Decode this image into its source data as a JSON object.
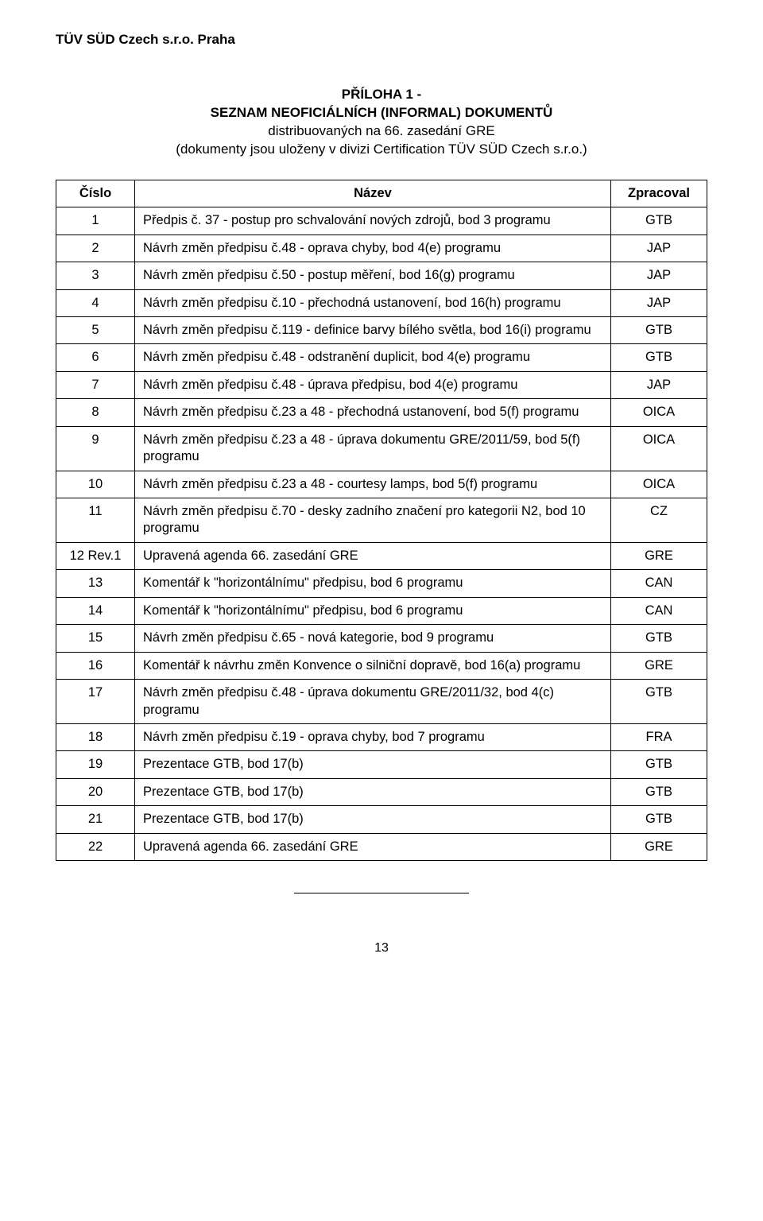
{
  "org_title": "TÜV SÜD Czech s.r.o. Praha",
  "doc_title_line1": "PŘÍLOHA 1 -",
  "doc_title_line2": "SEZNAM NEOFICIÁLNÍCH (INFORMAL) DOKUMENTŮ",
  "doc_subtitle_line1": "distribuovaných na 66. zasedání GRE",
  "doc_subtitle_line2": "(dokumenty jsou uloženy v divizi Certification TÜV SÜD Czech s.r.o.)",
  "headers": {
    "num": "Číslo",
    "name": "Název",
    "proc": "Zpracoval"
  },
  "rows": [
    {
      "num": "1",
      "name": "Předpis č. 37 - postup pro schvalování nových zdrojů, bod 3 programu",
      "proc": "GTB"
    },
    {
      "num": "2",
      "name": "Návrh změn předpisu č.48 - oprava chyby, bod 4(e) programu",
      "proc": "JAP"
    },
    {
      "num": "3",
      "name": "Návrh změn předpisu č.50 - postup měření, bod 16(g) programu",
      "proc": "JAP"
    },
    {
      "num": "4",
      "name": "Návrh změn předpisu č.10 - přechodná ustanovení, bod 16(h) programu",
      "proc": "JAP"
    },
    {
      "num": "5",
      "name": "Návrh změn předpisu č.119 - definice barvy bílého světla, bod 16(i) programu",
      "proc": "GTB"
    },
    {
      "num": "6",
      "name": "Návrh změn předpisu č.48 - odstranění duplicit, bod 4(e) programu",
      "proc": "GTB"
    },
    {
      "num": "7",
      "name": "Návrh změn předpisu č.48 - úprava předpisu, bod 4(e) programu",
      "proc": "JAP"
    },
    {
      "num": "8",
      "name": "Návrh změn předpisu č.23 a 48 - přechodná ustanovení, bod 5(f) programu",
      "proc": "OICA"
    },
    {
      "num": "9",
      "name": "Návrh změn předpisu č.23 a 48 - úprava dokumentu GRE/2011/59, bod 5(f) programu",
      "proc": "OICA"
    },
    {
      "num": "10",
      "name": "Návrh změn předpisu č.23 a 48 - courtesy lamps, bod 5(f) programu",
      "proc": "OICA"
    },
    {
      "num": "11",
      "name": "Návrh změn předpisu č.70 - desky zadního značení pro kategorii N2, bod 10 programu",
      "proc": "CZ"
    },
    {
      "num": "12 Rev.1",
      "name": "Upravená agenda 66. zasedání GRE",
      "proc": "GRE"
    },
    {
      "num": "13",
      "name": "Komentář k \"horizontálnímu\" předpisu, bod 6 programu",
      "proc": "CAN"
    },
    {
      "num": "14",
      "name": "Komentář k \"horizontálnímu\" předpisu, bod 6 programu",
      "proc": "CAN"
    },
    {
      "num": "15",
      "name": "Návrh změn předpisu č.65 - nová kategorie, bod 9 programu",
      "proc": "GTB"
    },
    {
      "num": "16",
      "name": "Komentář k návrhu změn Konvence o silniční dopravě, bod 16(a) programu",
      "proc": "GRE"
    },
    {
      "num": "17",
      "name": "Návrh změn předpisu č.48 - úprava dokumentu GRE/2011/32, bod 4(c) programu",
      "proc": "GTB"
    },
    {
      "num": "18",
      "name": "Návrh změn předpisu č.19 - oprava chyby, bod 7 programu",
      "proc": "FRA"
    },
    {
      "num": "19",
      "name": "Prezentace GTB, bod 17(b)",
      "proc": "GTB"
    },
    {
      "num": "20",
      "name": "Prezentace GTB, bod 17(b)",
      "proc": "GTB"
    },
    {
      "num": "21",
      "name": "Prezentace GTB, bod 17(b)",
      "proc": "GTB"
    },
    {
      "num": "22",
      "name": "Upravená agenda 66. zasedání GRE",
      "proc": "GRE"
    }
  ],
  "page_number": "13"
}
